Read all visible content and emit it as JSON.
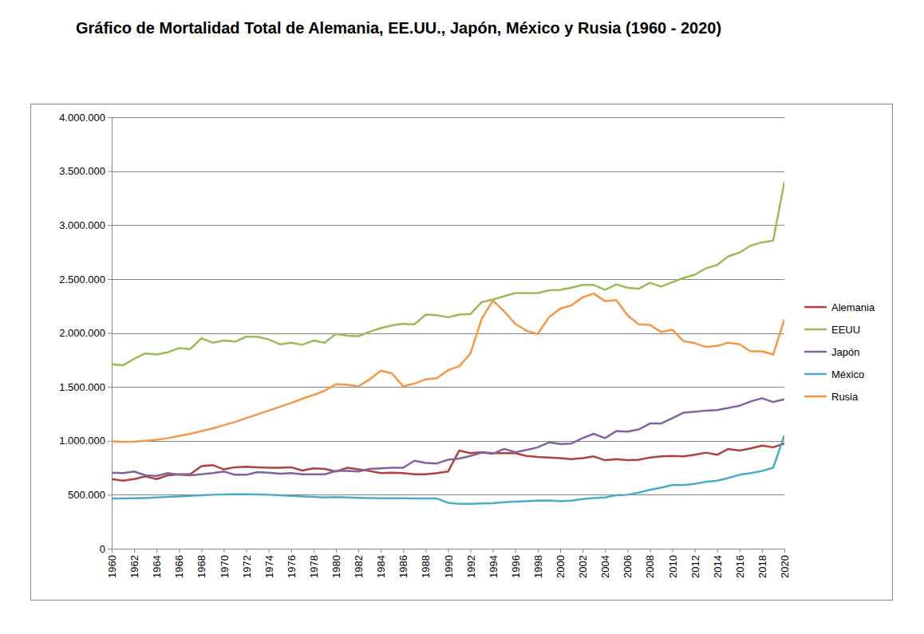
{
  "chart_data": {
    "type": "line",
    "title": "Gráfico de Mortalidad Total de Alemania, EE.UU., Japón, México y Rusia (1960 - 2020)",
    "x": [
      1960,
      1961,
      1962,
      1963,
      1964,
      1965,
      1966,
      1967,
      1968,
      1969,
      1970,
      1971,
      1972,
      1973,
      1974,
      1975,
      1976,
      1977,
      1978,
      1979,
      1980,
      1981,
      1982,
      1983,
      1984,
      1985,
      1986,
      1987,
      1988,
      1989,
      1990,
      1991,
      1992,
      1993,
      1994,
      1995,
      1996,
      1997,
      1998,
      1999,
      2000,
      2001,
      2002,
      2003,
      2004,
      2005,
      2006,
      2007,
      2008,
      2009,
      2010,
      2011,
      2012,
      2013,
      2014,
      2015,
      2016,
      2017,
      2018,
      2019,
      2020
    ],
    "xlim": [
      1960,
      2020
    ],
    "xticks": [
      1960,
      1962,
      1964,
      1966,
      1968,
      1970,
      1972,
      1974,
      1976,
      1978,
      1980,
      1982,
      1984,
      1986,
      1988,
      1990,
      1992,
      1994,
      1996,
      1998,
      2000,
      2002,
      2004,
      2006,
      2008,
      2010,
      2012,
      2014,
      2016,
      2018,
      2020
    ],
    "ylim": [
      0,
      4000000
    ],
    "yticks": [
      0,
      {
        "value": 500000,
        "label": "500.000"
      },
      {
        "value": 1000000,
        "label": "1.000.000"
      },
      {
        "value": 1500000,
        "label": "1.500.000"
      },
      {
        "value": 2000000,
        "label": "2.000.000"
      },
      {
        "value": 2500000,
        "label": "2.500.000"
      },
      {
        "value": 3000000,
        "label": "3.000.000"
      },
      {
        "value": 3500000,
        "label": "3.500.000"
      },
      {
        "value": 4000000,
        "label": "4.000.000"
      }
    ],
    "grid": true,
    "legend": "right",
    "series": [
      {
        "name": "Alemania",
        "color": "#b0413e",
        "values": [
          645000,
          630000,
          645000,
          670000,
          645000,
          680000,
          690000,
          690000,
          765000,
          775000,
          735000,
          755000,
          760000,
          755000,
          750000,
          750000,
          755000,
          725000,
          745000,
          740000,
          715000,
          750000,
          735000,
          720000,
          700000,
          705000,
          700000,
          690000,
          690000,
          700000,
          715000,
          910000,
          885000,
          895000,
          885000,
          885000,
          885000,
          860000,
          850000,
          845000,
          840000,
          830000,
          840000,
          855000,
          820000,
          830000,
          820000,
          825000,
          845000,
          855000,
          860000,
          855000,
          870000,
          890000,
          870000,
          925000,
          910000,
          930000,
          955000,
          940000,
          975000
        ]
      },
      {
        "name": "EEUU",
        "color": "#9bbb59",
        "values": [
          1710000,
          1700000,
          1760000,
          1810000,
          1800000,
          1820000,
          1860000,
          1850000,
          1950000,
          1910000,
          1930000,
          1920000,
          1965000,
          1965000,
          1940000,
          1895000,
          1910000,
          1890000,
          1930000,
          1910000,
          1990000,
          1975000,
          1970000,
          2010000,
          2045000,
          2070000,
          2085000,
          2080000,
          2170000,
          2165000,
          2145000,
          2170000,
          2175000,
          2285000,
          2310000,
          2340000,
          2370000,
          2370000,
          2370000,
          2395000,
          2400000,
          2420000,
          2445000,
          2445000,
          2400000,
          2450000,
          2420000,
          2410000,
          2465000,
          2430000,
          2470000,
          2510000,
          2540000,
          2600000,
          2630000,
          2710000,
          2745000,
          2810000,
          2840000,
          2855000,
          3400000
        ]
      },
      {
        "name": "Japón",
        "color": "#8064a2",
        "values": [
          705000,
          700000,
          715000,
          680000,
          675000,
          700000,
          685000,
          680000,
          690000,
          700000,
          715000,
          685000,
          685000,
          710000,
          705000,
          695000,
          700000,
          690000,
          690000,
          690000,
          720000,
          720000,
          715000,
          740000,
          745000,
          750000,
          750000,
          815000,
          795000,
          790000,
          825000,
          835000,
          860000,
          890000,
          880000,
          925000,
          895000,
          915000,
          940000,
          985000,
          970000,
          975000,
          1025000,
          1065000,
          1025000,
          1090000,
          1085000,
          1105000,
          1160000,
          1160000,
          1210000,
          1260000,
          1270000,
          1280000,
          1285000,
          1305000,
          1325000,
          1365000,
          1395000,
          1360000,
          1385000
        ]
      },
      {
        "name": "México",
        "color": "#4bacc6",
        "values": [
          465000,
          465000,
          467000,
          470000,
          475000,
          480000,
          485000,
          490000,
          495000,
          500000,
          503000,
          505000,
          505000,
          503000,
          500000,
          495000,
          490000,
          485000,
          480000,
          475000,
          478000,
          475000,
          472000,
          470000,
          468000,
          468000,
          467000,
          466000,
          465000,
          465000,
          425000,
          415000,
          415000,
          420000,
          422000,
          430000,
          437000,
          440000,
          445000,
          447000,
          440000,
          445000,
          460000,
          470000,
          475000,
          495000,
          500000,
          520000,
          545000,
          565000,
          590000,
          590000,
          600000,
          620000,
          630000,
          655000,
          685000,
          700000,
          720000,
          750000,
          1050000
        ]
      },
      {
        "name": "Rusia",
        "color": "#f79646",
        "values": [
          995000,
          990000,
          992000,
          1000000,
          1010000,
          1025000,
          1045000,
          1065000,
          1090000,
          1115000,
          1145000,
          1175000,
          1210000,
          1245000,
          1280000,
          1315000,
          1350000,
          1390000,
          1425000,
          1465000,
          1525000,
          1520000,
          1505000,
          1570000,
          1650000,
          1625000,
          1505000,
          1530000,
          1570000,
          1580000,
          1655000,
          1690000,
          1810000,
          2130000,
          2300000,
          2200000,
          2085000,
          2020000,
          1990000,
          2145000,
          2225000,
          2255000,
          2330000,
          2365000,
          2295000,
          2305000,
          2165000,
          2080000,
          2075000,
          2010000,
          2030000,
          1925000,
          1905000,
          1870000,
          1880000,
          1910000,
          1895000,
          1830000,
          1830000,
          1800000,
          2125000
        ]
      }
    ]
  }
}
